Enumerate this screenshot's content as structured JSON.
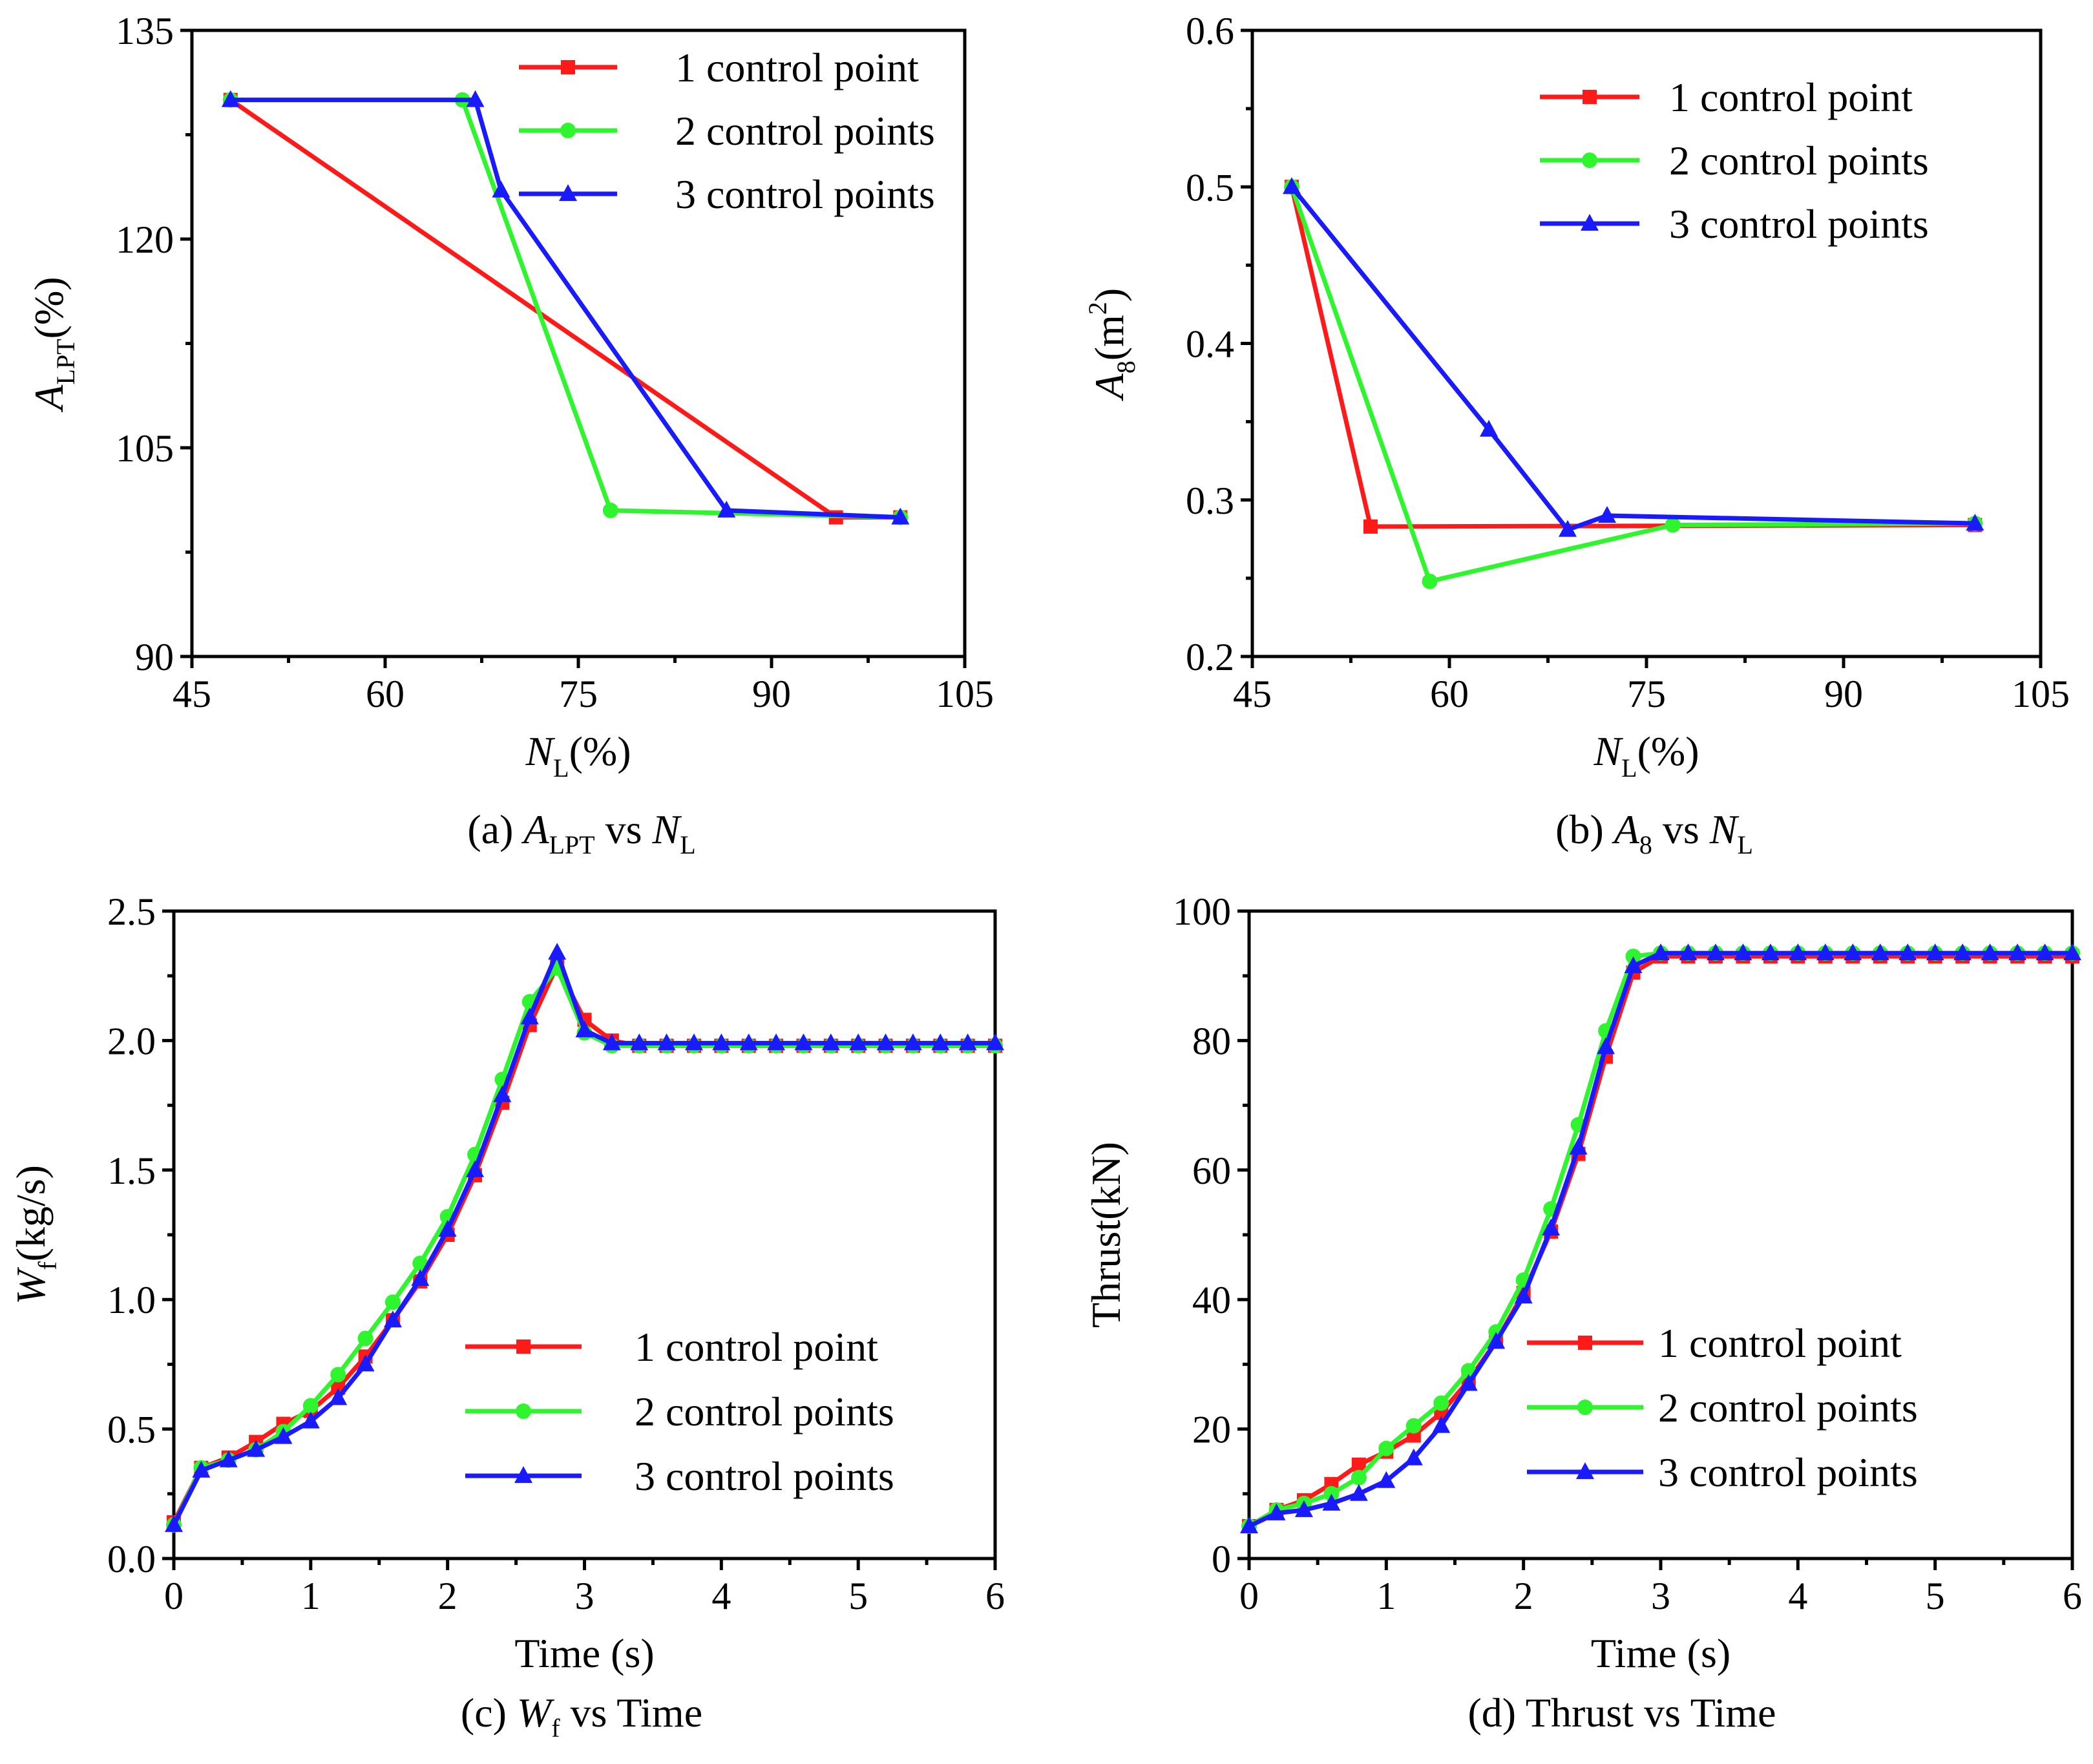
{
  "colors": {
    "red": "#ff1a1a",
    "green": "#2ef52e",
    "blue": "#1a1aff"
  },
  "chart_data": [
    {
      "id": "a",
      "type": "line",
      "caption": {
        "label": "(a)",
        "lhs_main": "A",
        "lhs_sub": "LPT",
        "vs": "vs",
        "rhs_main": "N",
        "rhs_sub": "L"
      },
      "xlabel": {
        "main": "N",
        "sub": "L",
        "rest": "(%)"
      },
      "ylabel": {
        "main": "A",
        "sub": "LPT",
        "rest": "(%)"
      },
      "xlim": [
        45,
        105
      ],
      "xticks": [
        45,
        60,
        75,
        90,
        105
      ],
      "ylim": [
        90,
        135
      ],
      "yticks": [
        90,
        105,
        120,
        135
      ],
      "legend": {
        "position": "top-right"
      },
      "series": [
        {
          "name": "1 control point",
          "color": "#ff1a1a",
          "marker": "square",
          "x": [
            48,
            95,
            100
          ],
          "y": [
            130,
            100,
            100
          ]
        },
        {
          "name": "2 control points",
          "color": "#2ef52e",
          "marker": "circle",
          "x": [
            48,
            66,
            77.5,
            100
          ],
          "y": [
            130,
            130,
            100.5,
            100
          ]
        },
        {
          "name": "3 control points",
          "color": "#1a1aff",
          "marker": "triangle",
          "x": [
            48,
            67,
            69,
            86.5,
            100
          ],
          "y": [
            130,
            130,
            123.5,
            100.5,
            100
          ]
        }
      ]
    },
    {
      "id": "b",
      "type": "line",
      "caption": {
        "label": "(b)",
        "lhs_main": "A",
        "lhs_sub": "8",
        "vs": "vs",
        "rhs_main": "N",
        "rhs_sub": "L"
      },
      "xlabel": {
        "main": "N",
        "sub": "L",
        "rest": "(%)"
      },
      "ylabel": {
        "main": "A",
        "sub": "8",
        "rest": "(m",
        "sup": "2",
        "close": ")"
      },
      "xlim": [
        45,
        105
      ],
      "xticks": [
        45,
        60,
        75,
        90,
        105
      ],
      "ylim": [
        0.2,
        0.6
      ],
      "yticks": [
        0.2,
        0.3,
        0.4,
        0.5,
        0.6
      ],
      "legend": {
        "position": "top-right"
      },
      "series": [
        {
          "name": "1 control point",
          "color": "#ff1a1a",
          "marker": "square",
          "x": [
            48,
            54,
            100
          ],
          "y": [
            0.5,
            0.283,
            0.284
          ]
        },
        {
          "name": "2 control points",
          "color": "#2ef52e",
          "marker": "circle",
          "x": [
            48,
            58.5,
            77,
            100
          ],
          "y": [
            0.5,
            0.248,
            0.284,
            0.285
          ]
        },
        {
          "name": "3 control points",
          "color": "#1a1aff",
          "marker": "triangle",
          "x": [
            48,
            63,
            69,
            72,
            100
          ],
          "y": [
            0.5,
            0.345,
            0.281,
            0.29,
            0.285
          ]
        }
      ]
    },
    {
      "id": "c",
      "type": "line",
      "caption": {
        "label": "(c)",
        "lhs_main": "W",
        "lhs_sub": "f",
        "vs": "vs",
        "rhs_text": "Time"
      },
      "xlabel": {
        "text": "Time (s)"
      },
      "ylabel": {
        "main": "W",
        "sub": "f",
        "rest": "(kg/s)"
      },
      "xlim": [
        0,
        6
      ],
      "xticks": [
        0,
        1,
        2,
        3,
        4,
        5,
        6
      ],
      "ylim": [
        0,
        2.5
      ],
      "yticks": [
        0.0,
        0.5,
        1.0,
        1.5,
        2.0,
        2.5
      ],
      "ytick_labels": [
        "0.0",
        "0.5",
        "1.0",
        "1.5",
        "2.0",
        "2.5"
      ],
      "legend": {
        "position": "bottom-right"
      },
      "series": [
        {
          "name": "1 control point",
          "color": "#ff1a1a",
          "marker": "square",
          "x": [
            0,
            0.2,
            0.4,
            0.6,
            0.8,
            1.0,
            1.2,
            1.4,
            1.6,
            1.8,
            2.0,
            2.2,
            2.4,
            2.6,
            2.8,
            3.0,
            3.2,
            3.4,
            3.6,
            3.8,
            4.0,
            4.2,
            4.4,
            4.6,
            4.8,
            5.0,
            5.2,
            5.4,
            5.6,
            5.8,
            6.0
          ],
          "y": [
            0.14,
            0.35,
            0.39,
            0.45,
            0.52,
            0.57,
            0.66,
            0.78,
            0.92,
            1.07,
            1.25,
            1.48,
            1.76,
            2.06,
            2.29,
            2.08,
            2.0,
            1.98,
            1.98,
            1.98,
            1.98,
            1.98,
            1.98,
            1.98,
            1.98,
            1.98,
            1.98,
            1.98,
            1.98,
            1.98,
            1.98
          ]
        },
        {
          "name": "2 control points",
          "color": "#2ef52e",
          "marker": "circle",
          "x": [
            0,
            0.2,
            0.4,
            0.6,
            0.8,
            1.0,
            1.2,
            1.4,
            1.6,
            1.8,
            2.0,
            2.2,
            2.4,
            2.6,
            2.8,
            3.0,
            3.2,
            3.4,
            3.6,
            3.8,
            4.0,
            4.2,
            4.4,
            4.6,
            4.8,
            5.0,
            5.2,
            5.4,
            5.6,
            5.8,
            6.0
          ],
          "y": [
            0.13,
            0.35,
            0.38,
            0.42,
            0.49,
            0.59,
            0.71,
            0.85,
            0.99,
            1.14,
            1.32,
            1.56,
            1.85,
            2.15,
            2.28,
            2.03,
            1.98,
            1.98,
            1.98,
            1.98,
            1.98,
            1.98,
            1.98,
            1.98,
            1.98,
            1.98,
            1.98,
            1.98,
            1.98,
            1.98,
            1.98
          ]
        },
        {
          "name": "3 control points",
          "color": "#1a1aff",
          "marker": "triangle",
          "x": [
            0,
            0.2,
            0.4,
            0.6,
            0.8,
            1.0,
            1.2,
            1.4,
            1.6,
            1.8,
            2.0,
            2.2,
            2.4,
            2.6,
            2.8,
            3.0,
            3.2,
            3.4,
            3.6,
            3.8,
            4.0,
            4.2,
            4.4,
            4.6,
            4.8,
            5.0,
            5.2,
            5.4,
            5.6,
            5.8,
            6.0
          ],
          "y": [
            0.13,
            0.34,
            0.38,
            0.42,
            0.47,
            0.53,
            0.62,
            0.75,
            0.92,
            1.08,
            1.27,
            1.5,
            1.79,
            2.09,
            2.34,
            2.04,
            1.99,
            1.99,
            1.99,
            1.99,
            1.99,
            1.99,
            1.99,
            1.99,
            1.99,
            1.99,
            1.99,
            1.99,
            1.99,
            1.99,
            1.99
          ]
        }
      ]
    },
    {
      "id": "d",
      "type": "line",
      "caption": {
        "text": "(d) Thrust vs Time"
      },
      "xlabel": {
        "text": "Time (s)"
      },
      "ylabel": {
        "text": "Thrust(kN)"
      },
      "xlim": [
        0,
        6
      ],
      "xticks": [
        0,
        1,
        2,
        3,
        4,
        5,
        6
      ],
      "ylim": [
        0,
        100
      ],
      "yticks": [
        0,
        20,
        40,
        60,
        80,
        100
      ],
      "legend": {
        "position": "bottom-right"
      },
      "series": [
        {
          "name": "1 control point",
          "color": "#ff1a1a",
          "marker": "square",
          "x": [
            0,
            0.2,
            0.4,
            0.6,
            0.8,
            1.0,
            1.2,
            1.4,
            1.6,
            1.8,
            2.0,
            2.2,
            2.4,
            2.6,
            2.8,
            3.0,
            3.2,
            3.4,
            3.6,
            3.8,
            4.0,
            4.2,
            4.4,
            4.6,
            4.8,
            5.0,
            5.2,
            5.4,
            5.6,
            5.8,
            6.0
          ],
          "y": [
            5,
            7.5,
            9,
            11.5,
            14.5,
            16.5,
            19,
            22.5,
            27.5,
            33.5,
            41,
            50.5,
            62.5,
            77.5,
            90.5,
            93,
            93,
            93,
            93,
            93,
            93,
            93,
            93,
            93,
            93,
            93,
            93,
            93,
            93,
            93,
            93
          ]
        },
        {
          "name": "2 control points",
          "color": "#2ef52e",
          "marker": "circle",
          "x": [
            0,
            0.2,
            0.4,
            0.6,
            0.8,
            1.0,
            1.2,
            1.4,
            1.6,
            1.8,
            2.0,
            2.2,
            2.4,
            2.6,
            2.8,
            3.0,
            3.2,
            3.4,
            3.6,
            3.8,
            4.0,
            4.2,
            4.4,
            4.6,
            4.8,
            5.0,
            5.2,
            5.4,
            5.6,
            5.8,
            6.0
          ],
          "y": [
            5,
            7.5,
            8.5,
            10,
            12.5,
            17,
            20.5,
            24,
            29,
            35,
            43,
            54,
            67,
            81.5,
            93,
            93.5,
            93.5,
            93.5,
            93.5,
            93.5,
            93.5,
            93.5,
            93.5,
            93.5,
            93.5,
            93.5,
            93.5,
            93.5,
            93.5,
            93.5,
            93.5
          ]
        },
        {
          "name": "3 control points",
          "color": "#1a1aff",
          "marker": "triangle",
          "x": [
            0,
            0.2,
            0.4,
            0.6,
            0.8,
            1.0,
            1.2,
            1.4,
            1.6,
            1.8,
            2.0,
            2.2,
            2.4,
            2.6,
            2.8,
            3.0,
            3.2,
            3.4,
            3.6,
            3.8,
            4.0,
            4.2,
            4.4,
            4.6,
            4.8,
            5.0,
            5.2,
            5.4,
            5.6,
            5.8,
            6.0
          ],
          "y": [
            5,
            7,
            7.5,
            8.5,
            10,
            12,
            15.5,
            20.5,
            27,
            33.5,
            40.5,
            51,
            63.5,
            79,
            91.5,
            93.5,
            93.5,
            93.5,
            93.5,
            93.5,
            93.5,
            93.5,
            93.5,
            93.5,
            93.5,
            93.5,
            93.5,
            93.5,
            93.5,
            93.5,
            93.5
          ]
        }
      ]
    }
  ]
}
